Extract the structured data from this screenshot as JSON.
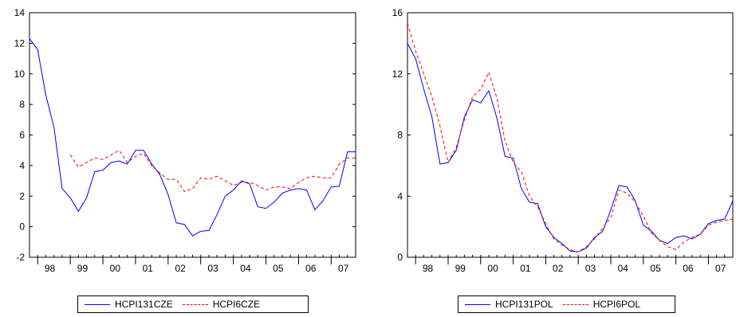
{
  "chart_data": [
    {
      "type": "line",
      "x_tick_labels": [
        "98",
        "99",
        "00",
        "01",
        "02",
        "03",
        "04",
        "05",
        "06",
        "07"
      ],
      "x_range": [
        1997.75,
        2007.75
      ],
      "ylim": [
        -2,
        14
      ],
      "yticks": [
        -2,
        0,
        2,
        4,
        6,
        8,
        10,
        12,
        14
      ],
      "grid": false,
      "legend_position": "bottom",
      "series": [
        {
          "name": "HCPI131CZE",
          "color": "#0000ff",
          "dash": false,
          "x": [
            1997.75,
            1998.0,
            1998.25,
            1998.5,
            1998.75,
            1999.0,
            1999.25,
            1999.5,
            1999.75,
            2000.0,
            2000.25,
            2000.5,
            2000.75,
            2001.0,
            2001.25,
            2001.5,
            2001.75,
            2002.0,
            2002.25,
            2002.5,
            2002.75,
            2003.0,
            2003.25,
            2003.5,
            2003.75,
            2004.0,
            2004.25,
            2004.5,
            2004.75,
            2005.0,
            2005.25,
            2005.5,
            2005.75,
            2006.0,
            2006.25,
            2006.5,
            2006.75,
            2007.0,
            2007.25,
            2007.5,
            2007.75
          ],
          "y": [
            12.3,
            11.6,
            8.6,
            6.5,
            2.5,
            1.9,
            1.0,
            1.9,
            3.6,
            3.7,
            4.2,
            4.3,
            4.1,
            5.0,
            5.0,
            4.1,
            3.4,
            2.1,
            0.25,
            0.15,
            -0.6,
            -0.3,
            -0.25,
            0.8,
            2.0,
            2.4,
            3.0,
            2.8,
            1.3,
            1.2,
            1.6,
            2.2,
            2.4,
            2.5,
            2.4,
            1.1,
            1.7,
            2.6,
            2.65,
            4.9,
            4.9
          ]
        },
        {
          "name": "HCPI6CZE",
          "color": "#ff0000",
          "dash": true,
          "x": [
            1999.0,
            1999.25,
            1999.5,
            1999.75,
            2000.0,
            2000.25,
            2000.5,
            2000.75,
            2001.0,
            2001.25,
            2001.5,
            2001.75,
            2002.0,
            2002.25,
            2002.5,
            2002.75,
            2003.0,
            2003.25,
            2003.5,
            2003.75,
            2004.0,
            2004.25,
            2004.5,
            2004.75,
            2005.0,
            2005.25,
            2005.5,
            2005.75,
            2006.0,
            2006.25,
            2006.5,
            2006.75,
            2007.0,
            2007.25,
            2007.5,
            2007.75
          ],
          "y": [
            4.7,
            3.9,
            4.2,
            4.5,
            4.4,
            4.7,
            5.0,
            4.2,
            4.6,
            4.8,
            4.0,
            3.5,
            3.1,
            3.1,
            2.3,
            2.5,
            3.2,
            3.1,
            3.3,
            3.0,
            2.7,
            2.9,
            2.9,
            2.7,
            2.4,
            2.6,
            2.6,
            2.5,
            2.9,
            3.2,
            3.3,
            3.2,
            3.2,
            4.1,
            4.5,
            4.5
          ]
        }
      ]
    },
    {
      "type": "line",
      "x_tick_labels": [
        "98",
        "99",
        "00",
        "01",
        "02",
        "03",
        "04",
        "05",
        "06",
        "07"
      ],
      "x_range": [
        1997.75,
        2007.75
      ],
      "ylim": [
        0,
        16
      ],
      "yticks": [
        0,
        4,
        8,
        12,
        16
      ],
      "grid": false,
      "legend_position": "bottom",
      "series": [
        {
          "name": "HCPI131POL",
          "color": "#0000ff",
          "dash": false,
          "x": [
            1997.75,
            1998.0,
            1998.25,
            1998.5,
            1998.75,
            1999.0,
            1999.25,
            1999.5,
            1999.75,
            2000.0,
            2000.25,
            2000.5,
            2000.75,
            2001.0,
            2001.25,
            2001.5,
            2001.75,
            2002.0,
            2002.25,
            2002.5,
            2002.75,
            2003.0,
            2003.25,
            2003.5,
            2003.75,
            2004.0,
            2004.25,
            2004.5,
            2004.75,
            2005.0,
            2005.25,
            2005.5,
            2005.75,
            2006.0,
            2006.25,
            2006.5,
            2006.75,
            2007.0,
            2007.25,
            2007.5,
            2007.75
          ],
          "y": [
            14.0,
            13.0,
            11.0,
            9.2,
            6.1,
            6.2,
            7.0,
            9.2,
            10.3,
            10.1,
            10.9,
            9.1,
            6.6,
            6.5,
            4.5,
            3.6,
            3.5,
            2.0,
            1.3,
            0.9,
            0.4,
            0.35,
            0.6,
            1.3,
            1.7,
            3.1,
            4.7,
            4.6,
            3.7,
            2.1,
            1.7,
            1.1,
            0.9,
            1.3,
            1.4,
            1.2,
            1.5,
            2.2,
            2.4,
            2.5,
            3.7
          ]
        },
        {
          "name": "HCPI6POL",
          "color": "#ff0000",
          "dash": true,
          "x": [
            1997.75,
            1998.0,
            1998.25,
            1998.5,
            1998.75,
            1999.0,
            1999.25,
            1999.5,
            1999.75,
            2000.0,
            2000.25,
            2000.5,
            2000.75,
            2001.0,
            2001.25,
            2001.5,
            2001.75,
            2002.0,
            2002.25,
            2002.5,
            2002.75,
            2003.0,
            2003.25,
            2003.5,
            2003.75,
            2004.0,
            2004.25,
            2004.5,
            2004.75,
            2005.0,
            2005.25,
            2005.5,
            2005.75,
            2006.0,
            2006.25,
            2006.5,
            2006.75,
            2007.0,
            2007.25,
            2007.5,
            2007.75
          ],
          "y": [
            15.3,
            13.5,
            12.0,
            10.5,
            8.6,
            6.2,
            7.2,
            9.0,
            10.5,
            11.0,
            12.1,
            10.4,
            7.6,
            6.2,
            5.6,
            4.0,
            3.3,
            2.2,
            1.2,
            0.8,
            0.5,
            0.35,
            0.7,
            1.2,
            1.9,
            2.6,
            4.4,
            4.2,
            3.6,
            2.7,
            1.6,
            1.1,
            0.7,
            0.5,
            1.0,
            1.3,
            1.5,
            2.1,
            2.3,
            2.4,
            2.5
          ]
        }
      ]
    }
  ]
}
